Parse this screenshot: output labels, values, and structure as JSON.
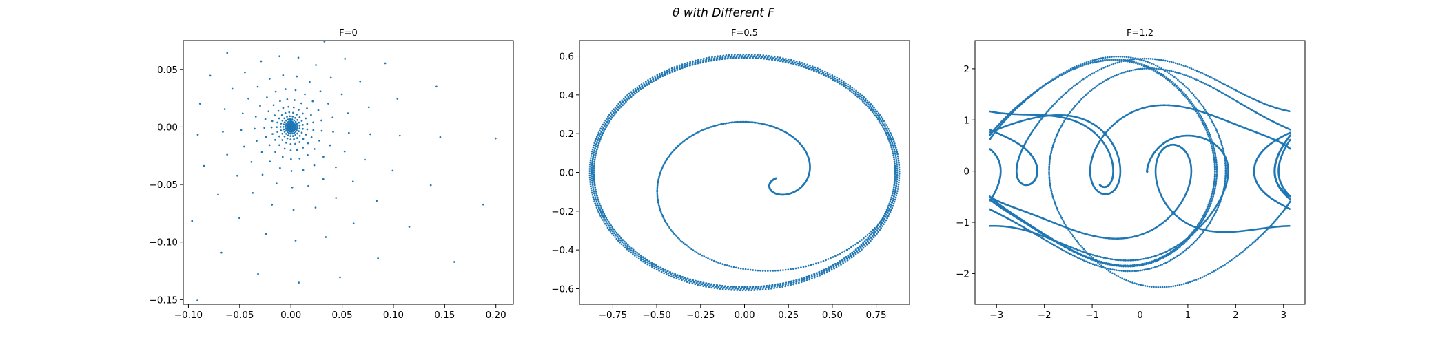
{
  "figure": {
    "suptitle": "θ with Different F",
    "series_color": "#1f77b4"
  },
  "chart_data": [
    {
      "type": "scatter",
      "title": "F=0",
      "xlim": [
        -0.105,
        0.217
      ],
      "ylim": [
        -0.154,
        0.075
      ],
      "xticks": [
        -0.1,
        -0.05,
        0.0,
        0.05,
        0.1,
        0.15,
        0.2
      ],
      "xtick_labels": [
        "−0.10",
        "−0.05",
        "0.00",
        "0.05",
        "0.10",
        "0.15",
        "0.20"
      ],
      "yticks": [
        0.05,
        0.0,
        -0.05,
        -0.1,
        -0.15
      ],
      "ytick_labels": [
        "0.05",
        "0.00",
        "−0.05",
        "−0.10",
        "−0.15"
      ],
      "trajectory": {
        "kind": "damped-spiral",
        "start": [
          0.2,
          0.0
        ],
        "center": [
          0.0,
          0.0
        ]
      }
    },
    {
      "type": "scatter",
      "title": "F=0.5",
      "xlim": [
        -0.94,
        0.94
      ],
      "ylim": [
        -0.68,
        0.68
      ],
      "xticks": [
        -0.75,
        -0.5,
        -0.25,
        0.0,
        0.25,
        0.5,
        0.75
      ],
      "xtick_labels": [
        "−0.75",
        "−0.50",
        "−0.25",
        "0.00",
        "0.25",
        "0.50",
        "0.75"
      ],
      "yticks": [
        0.6,
        0.4,
        0.2,
        0.0,
        -0.2,
        -0.4,
        -0.6
      ],
      "ytick_labels": [
        "0.6",
        "0.4",
        "0.2",
        "0.0",
        "−0.2",
        "−0.4",
        "−0.6"
      ],
      "trajectory": {
        "kind": "spiral-to-limit-cycle",
        "start": [
          0.18,
          -0.03
        ],
        "cycle_radii": [
          0.87,
          0.6
        ]
      }
    },
    {
      "type": "scatter",
      "title": "F=1.2",
      "xlim": [
        -3.45,
        3.45
      ],
      "ylim": [
        -2.6,
        2.55
      ],
      "xticks": [
        -3,
        -2,
        -1,
        0,
        1,
        2,
        3
      ],
      "xtick_labels": [
        "−3",
        "−2",
        "−1",
        "0",
        "1",
        "2",
        "3"
      ],
      "yticks": [
        2,
        1,
        0,
        -1,
        -2
      ],
      "ytick_labels": [
        "2",
        "1",
        "0",
        "−1",
        "−2"
      ],
      "trajectory": {
        "kind": "chaotic-wrapped",
        "start": [
          0.15,
          0.0
        ],
        "wrap": [
          -3.14159,
          3.14159
        ]
      }
    }
  ]
}
